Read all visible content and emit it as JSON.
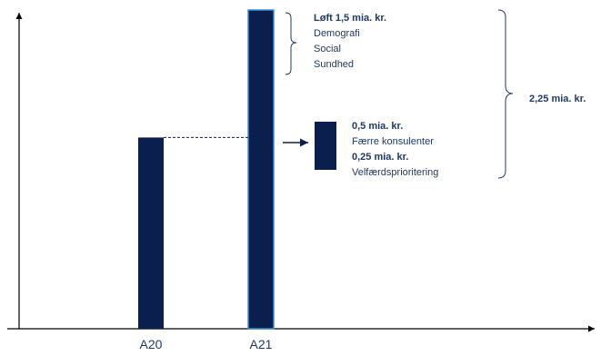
{
  "chart_data": {
    "type": "bar",
    "categories": [
      "A20",
      "A21"
    ],
    "values": [
      2.25,
      3.75
    ],
    "ylim": [
      0,
      3.75
    ],
    "grid": false,
    "colors": {
      "bar": "#0b1f4f",
      "bar_highlight_edge": "#3b8fd6",
      "text": "#1f3a66",
      "axis": "#000000"
    },
    "annotations": {
      "increase": {
        "headline": "Løft 1,5 mia. kr.",
        "items": [
          "Demografi",
          "Social",
          "Sundhed"
        ]
      },
      "offset": {
        "lines": [
          {
            "text": "0,5 mia. kr.",
            "bold": true
          },
          {
            "text": "Færre konsulenter",
            "bold": false
          },
          {
            "text": "0,25 mia. kr.",
            "bold": true
          },
          {
            "text": "Velfærdsprioritering",
            "bold": false
          }
        ]
      },
      "total": "2,25 mia. kr."
    }
  }
}
